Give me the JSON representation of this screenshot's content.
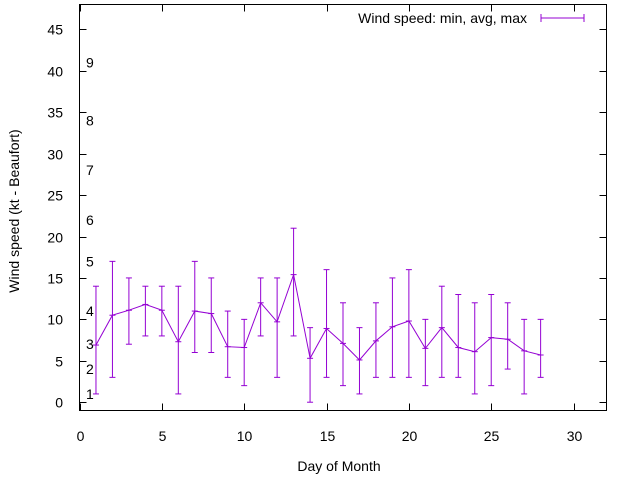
{
  "chart_data": {
    "type": "line",
    "title": "",
    "xlabel": "Day of Month",
    "ylabel": "Wind speed (kt - Beaufort)",
    "xlim": [
      0,
      32
    ],
    "ylim": [
      -1,
      48
    ],
    "x_ticks": [
      0,
      5,
      10,
      15,
      20,
      25,
      30
    ],
    "y_ticks": [
      0,
      5,
      10,
      15,
      20,
      25,
      30,
      35,
      40,
      45
    ],
    "beaufort_labels": [
      {
        "label": "1",
        "value": 1
      },
      {
        "label": "2",
        "value": 4
      },
      {
        "label": "3",
        "value": 7
      },
      {
        "label": "4",
        "value": 11
      },
      {
        "label": "5",
        "value": 17
      },
      {
        "label": "6",
        "value": 22
      },
      {
        "label": "7",
        "value": 28
      },
      {
        "label": "8",
        "value": 34
      },
      {
        "label": "9",
        "value": 41
      }
    ],
    "series": [
      {
        "name": "Wind speed: min, avg, max",
        "color": "#9400d3",
        "x": [
          1,
          2,
          3,
          4,
          5,
          6,
          7,
          8,
          9,
          10,
          11,
          12,
          13,
          14,
          15,
          16,
          17,
          18,
          19,
          20,
          21,
          22,
          23,
          24,
          25,
          26,
          27,
          28
        ],
        "avg": [
          6.9,
          10.5,
          11.1,
          11.8,
          11.1,
          7.3,
          11.0,
          10.7,
          6.7,
          6.6,
          12.0,
          9.7,
          15.4,
          5.3,
          8.9,
          7.1,
          5.1,
          7.4,
          9.1,
          9.8,
          6.5,
          9.0,
          6.6,
          6.1,
          7.8,
          7.6,
          6.2,
          5.7
        ],
        "min": [
          1.0,
          3.0,
          7.0,
          8.0,
          8.0,
          1.0,
          6.0,
          6.0,
          3.0,
          2.0,
          8.0,
          3.0,
          8.0,
          0.0,
          3.0,
          2.0,
          1.0,
          3.0,
          3.0,
          3.0,
          2.0,
          3.0,
          3.0,
          1.0,
          2.0,
          4.0,
          1.0,
          3.0
        ],
        "max": [
          14.0,
          17.0,
          15.0,
          14.0,
          14.0,
          14.0,
          17.0,
          15.0,
          11.0,
          10.0,
          15.0,
          15.0,
          21.0,
          9.0,
          16.0,
          12.0,
          9.0,
          12.0,
          15.0,
          16.0,
          10.0,
          14.0,
          13.0,
          12.0,
          13.0,
          12.0,
          10.0,
          10.0
        ]
      }
    ],
    "legend": "top-right"
  }
}
